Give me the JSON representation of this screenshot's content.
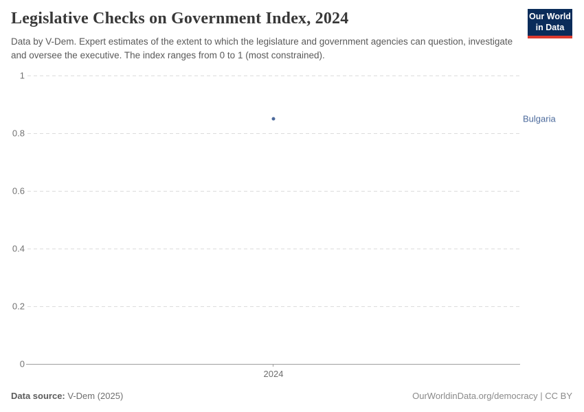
{
  "header": {
    "title": "Legislative Checks on Government Index, 2024",
    "subtitle": "Data by V-Dem. Expert estimates of the extent to which the legislature and government agencies can question, investigate and oversee the executive. The index ranges from 0 to 1 (most constrained).",
    "logo": {
      "line1": "Our World",
      "line2": "in Data"
    }
  },
  "chart_data": {
    "type": "scatter",
    "title": "Legislative Checks on Government Index, 2024",
    "x": [
      2024
    ],
    "series": [
      {
        "name": "Bulgaria",
        "values": [
          0.85
        ],
        "color": "#4c6a9c"
      }
    ],
    "xlabel": "",
    "ylabel": "",
    "ylim": [
      0,
      1
    ],
    "y_tick_labels": [
      "1",
      "0.8",
      "0.6",
      "0.4",
      "0.2",
      "0"
    ],
    "x_tick_labels": [
      "2024"
    ],
    "grid": "horizontal-dashed",
    "legend_position": "entity label right of plot"
  },
  "colors": {
    "accent_blue": "#4c6a9c",
    "logo_bg": "#0a2c5a",
    "logo_accent": "#dc3a2e",
    "grid": "#dcdcdc",
    "axis": "#9e9e9e"
  },
  "footer": {
    "source_label": "Data source:",
    "source_value": "V-Dem (2025)",
    "credit": "OurWorldinData.org/democracy | CC BY"
  }
}
